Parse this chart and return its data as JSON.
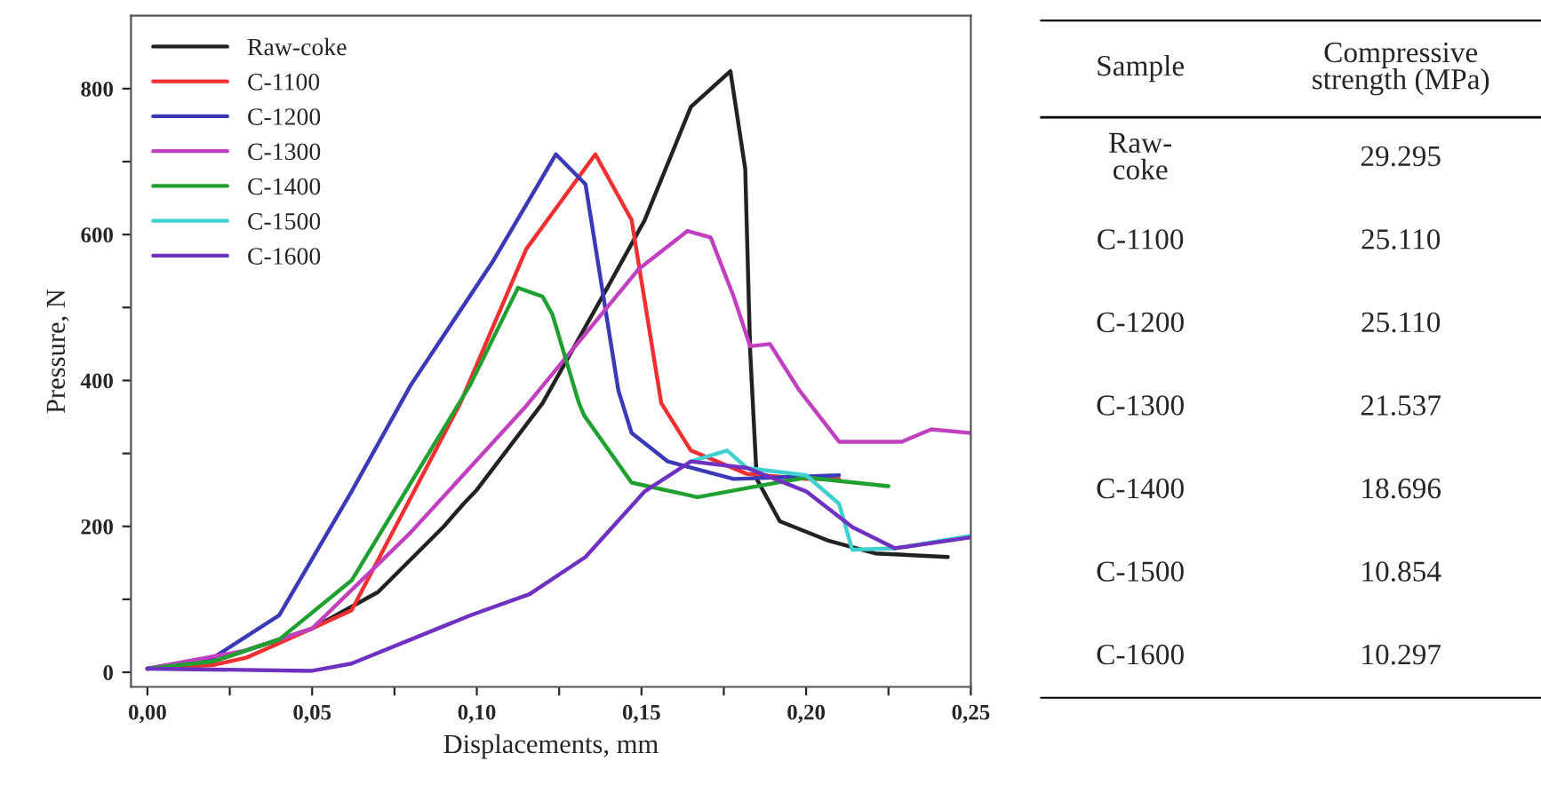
{
  "chart_data": [
    {
      "type": "line",
      "xlabel": "Displacements, mm",
      "ylabel": "Pressure, N",
      "xlim": [
        -0.005,
        0.25
      ],
      "ylim": [
        -20,
        900
      ],
      "xticks": [
        {
          "value": 0,
          "label": "0,00"
        },
        {
          "value": 0.025,
          "label": null
        },
        {
          "value": 0.05,
          "label": "0,05"
        },
        {
          "value": 0.075,
          "label": null
        },
        {
          "value": 0.1,
          "label": "0,10"
        },
        {
          "value": 0.125,
          "label": null
        },
        {
          "value": 0.15,
          "label": "0,15"
        },
        {
          "value": 0.175,
          "label": null
        },
        {
          "value": 0.2,
          "label": "0,20"
        },
        {
          "value": 0.225,
          "label": null
        },
        {
          "value": 0.25,
          "label": "0,25"
        }
      ],
      "yticks": [
        0,
        {
          "value": 100,
          "label": null
        },
        200,
        {
          "value": 300,
          "label": null
        },
        400,
        {
          "value": 500,
          "label": null
        },
        600,
        {
          "value": 700,
          "label": null
        },
        800
      ],
      "legend": "top left",
      "grid": false,
      "line_style": "solid",
      "marker": "none",
      "series": [
        {
          "name": "Raw-coke",
          "color": "#222222",
          "x": [
            0,
            0.02,
            0.03,
            0.05,
            0.07,
            0.09,
            0.096,
            0.1,
            0.12,
            0.14,
            0.151,
            0.165,
            0.177,
            0.1815,
            0.183,
            0.185,
            0.192,
            0.207,
            0.221,
            0.243
          ],
          "values": [
            5,
            15,
            30,
            60,
            110,
            200,
            231,
            250,
            369,
            530,
            620,
            775,
            824,
            690,
            440,
            265,
            207,
            180,
            163,
            158
          ]
        },
        {
          "name": "C-1100",
          "color": "#f03030",
          "x": [
            0,
            0.02,
            0.03,
            0.04,
            0.05,
            0.062,
            0.095,
            0.115,
            0.136,
            0.147,
            0.156,
            0.165,
            0.182,
            0.2,
            0.21
          ],
          "values": [
            5,
            10,
            20,
            40,
            60,
            85,
            369,
            580,
            710,
            620,
            369,
            304,
            272,
            265,
            265
          ]
        },
        {
          "name": "C-1200",
          "color": "#3a3ab8",
          "x": [
            0,
            0.02,
            0.04,
            0.062,
            0.08,
            0.105,
            0.124,
            0.133,
            0.143,
            0.147,
            0.158,
            0.178,
            0.21
          ],
          "values": [
            5,
            20,
            78,
            248,
            394,
            564,
            710,
            669,
            386,
            328,
            289,
            265,
            270
          ]
        },
        {
          "name": "C-1300",
          "color": "#c040c0",
          "x": [
            0,
            0.03,
            0.05,
            0.08,
            0.115,
            0.149,
            0.164,
            0.171,
            0.178,
            0.183,
            0.189,
            0.198,
            0.21,
            0.229,
            0.238,
            0.25
          ],
          "values": [
            5,
            30,
            60,
            192,
            365,
            552,
            605,
            596,
            515,
            447,
            450,
            386,
            316,
            316,
            333,
            328
          ]
        },
        {
          "name": "C-1400",
          "color": "#20a030",
          "x": [
            0,
            0.02,
            0.04,
            0.062,
            0.098,
            0.1125,
            0.12,
            0.123,
            0.131,
            0.1326,
            0.147,
            0.167,
            0.185,
            0.2,
            0.225
          ],
          "values": [
            5,
            15,
            45,
            126,
            394,
            527,
            515,
            490,
            369,
            352,
            260,
            240,
            255,
            267,
            255
          ]
        },
        {
          "name": "C-1500",
          "color": "#40d0d0",
          "x": [
            0.165,
            0.176,
            0.182,
            0.2,
            0.21,
            0.214,
            0.227,
            0.25
          ],
          "values": [
            289,
            304,
            280,
            270,
            231,
            168,
            170,
            187
          ]
        },
        {
          "name": "C-1600",
          "color": "#7030c0",
          "x": [
            0,
            0.05,
            0.062,
            0.098,
            0.116,
            0.133,
            0.151,
            0.165,
            0.182,
            0.2,
            0.214,
            0.227,
            0.25
          ],
          "values": [
            5,
            2,
            12,
            78,
            107,
            158,
            248,
            289,
            280,
            248,
            199,
            170,
            185
          ]
        }
      ]
    },
    {
      "type": "other",
      "annotations": [
        "Sample",
        "Compressive\nstrength (MPa)",
        "Raw-\ncoke",
        "29.295",
        "C-1100",
        "25.110",
        "C-1200",
        "25.110",
        "C-1300",
        "21.537",
        "C-1400",
        "18.696",
        "C-1500",
        "10.854",
        "C-1600",
        "10.297"
      ]
    }
  ]
}
